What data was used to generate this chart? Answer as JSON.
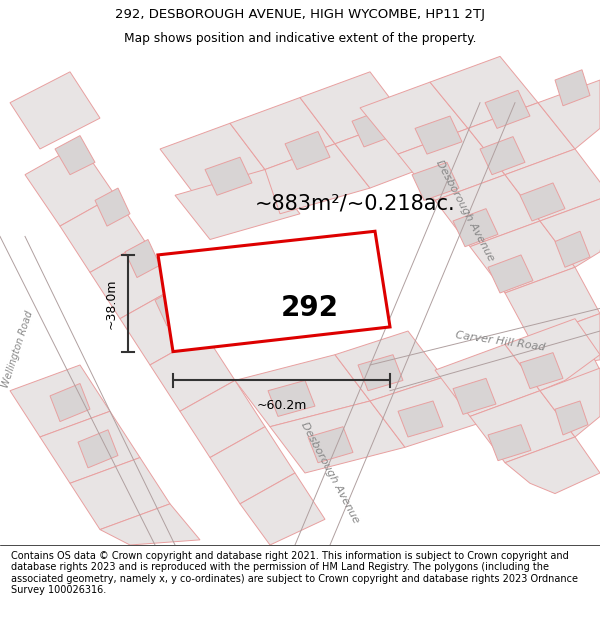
{
  "title_line1": "292, DESBOROUGH AVENUE, HIGH WYCOMBE, HP11 2TJ",
  "title_line2": "Map shows position and indicative extent of the property.",
  "footer_text": "Contains OS data © Crown copyright and database right 2021. This information is subject to Crown copyright and database rights 2023 and is reproduced with the permission of HM Land Registry. The polygons (including the associated geometry, namely x, y co-ordinates) are subject to Crown copyright and database rights 2023 Ordnance Survey 100026316.",
  "area_label": "~883m²/~0.218ac.",
  "plot_number": "292",
  "dim_width": "~60.2m",
  "dim_height": "~38.0m",
  "road_label_desborough": "Desborough Avenue",
  "road_label_wellington": "Wellington Road",
  "road_label_carver": "Carver Hill Road",
  "map_bg": "#ffffff",
  "parcel_fill": "#e8e4e4",
  "parcel_edge": "#e8a0a0",
  "parcel_lw": 0.7,
  "plot_fill": "#ffffff",
  "plot_edge_color": "#dd0000",
  "plot_edge_width": 2.2,
  "title_fontsize": 9.5,
  "subtitle_fontsize": 8.8,
  "footer_fontsize": 7.0,
  "area_fontsize": 15,
  "plot_num_fontsize": 20,
  "dim_fontsize": 9,
  "road_fontsize": 8
}
